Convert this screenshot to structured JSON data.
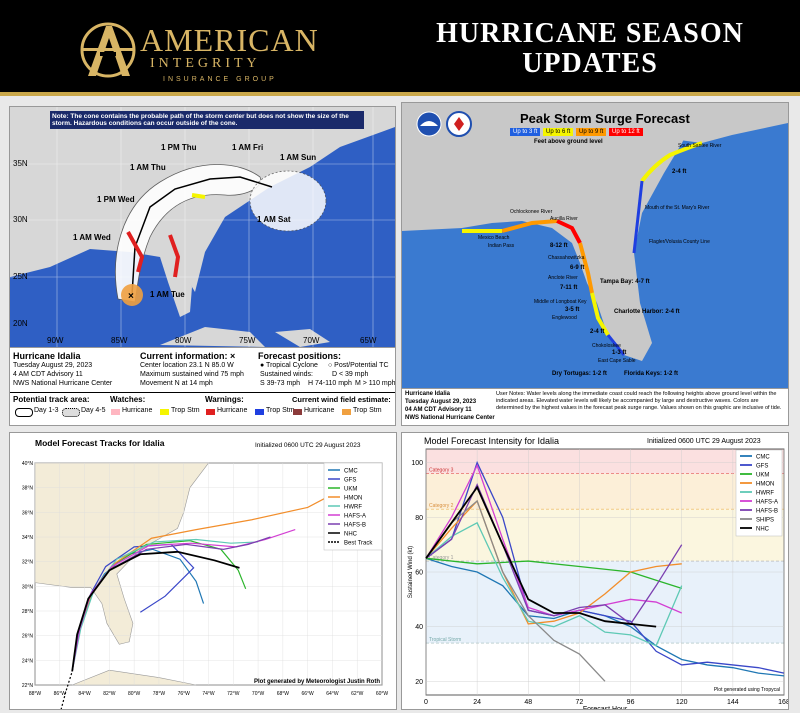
{
  "header": {
    "company_name": "AMERICAN",
    "company_name2": "INTEGRITY",
    "company_sub": "INSURANCE GROUP",
    "title_line1": "HURRICANE SEASON",
    "title_line2": "UPDATES"
  },
  "cone_map": {
    "note": "Note: The cone contains the probable path of the storm center but does not show the size of the storm. Hazardous conditions can occur outside of the cone.",
    "storm_name": "Hurricane Idalia",
    "date": "Tuesday August 29, 2023",
    "advisory": "4 AM CDT Advisory 11",
    "center": "NWS National Hurricane Center",
    "current_info_title": "Current information: ×",
    "center_location": "Center location 23.1 N 85.0 W",
    "max_wind": "Maximum sustained wind 75 mph",
    "movement": "Movement N at 14 mph",
    "forecast_positions_title": "Forecast positions:",
    "fp_tropical": "● Tropical Cyclone",
    "fp_post": "○ Post/Potential TC",
    "sustained_winds": "Sustained winds:",
    "wind_d": "D < 39 mph",
    "wind_s": "S 39-73 mph",
    "wind_h": "H 74-110 mph",
    "wind_m": "M > 110 mph",
    "track_area_label": "Potential track area:",
    "day13": "Day 1-3",
    "day45": "Day 4-5",
    "watches_label": "Watches:",
    "watch_hurricane": "Hurricane",
    "watch_trop": "Trop Stm",
    "warnings_label": "Warnings:",
    "warn_hurricane": "Hurricane",
    "warn_trop": "Trop Stm",
    "wind_field_label": "Current wind field estimate:",
    "wf_hurricane": "Hurricane",
    "wf_trop": "Trop Stm",
    "time_labels": [
      "1 AM Fri",
      "1 PM Thu",
      "1 AM Thu",
      "1 PM Wed",
      "1 AM Wed",
      "1 AM Tue",
      "1 AM Sun",
      "1 AM Sat"
    ],
    "lat_labels": [
      "35N",
      "30N",
      "25N",
      "20N"
    ],
    "lon_labels": [
      "90W",
      "85W",
      "80W",
      "75W",
      "70W",
      "65W"
    ]
  },
  "surge_map": {
    "title": "Peak Storm Surge Forecast",
    "legend": [
      "Up to 3 ft",
      "Up to 6 ft",
      "Up to 9 ft",
      "Up to 12 ft"
    ],
    "legend_colors": [
      "#1f5fe0",
      "#f5f500",
      "#ff9900",
      "#ff0000"
    ],
    "subtitle": "Feet above ground level",
    "storm_name": "Hurricane Idalia",
    "date": "Tuesday August 29, 2023",
    "advisory": "04 AM CDT Advisory 11",
    "center": "NWS National Hurricane Center",
    "user_notes": "User Notes: Water levels along the immediate coast could reach the following heights above ground level within the indicated areas. Elevated water levels will likely be accompanied by large and destructive waves. Colors are determined by the highest values in the forecast peak surge range. Values shown on this graphic are inclusive of tide.",
    "places": [
      "South Santee River",
      "Mouth of the St. Mary's River",
      "Flagler/Volusia County Line",
      "Ochlockonee River",
      "Aucilla River",
      "Indian Pass",
      "Mexico Beach",
      "Chassahowitzka",
      "Anclote River",
      "Tampa Bay: 4-7 ft",
      "Middle of Longboat Key",
      "Englewood",
      "Charlotte Harbor: 2-4 ft",
      "Chokoloskee",
      "East Cape Sable",
      "Dry Tortugas: 1-2 ft",
      "Florida Keys: 1-2 ft"
    ],
    "values": [
      "2-4 ft",
      "8-12 ft",
      "6-9 ft",
      "7-11 ft",
      "4-7 ft",
      "3-5 ft",
      "2-4 ft",
      "1-3 ft",
      "2-4 ft"
    ]
  },
  "track_chart": {
    "title": "Model Forecast Tracks for Idalia",
    "initialized": "Initialized 0600 UTC 29 August 2023",
    "credit": "Plot generated by Meteorologist Justin Roth"
  },
  "intensity_chart": {
    "title": "Model Forecast Intensity for Idalia",
    "initialized": "Initialized 0600 UTC 29 August 2023",
    "credit": "Plot generated using Tropycal",
    "cat3": "Category 3",
    "cat2": "Category 2",
    "cat1": "Category 1",
    "ts": "Tropical Storm"
  },
  "chart_data": [
    {
      "type": "line",
      "title": "Model Forecast Tracks for Idalia",
      "xlabel": "",
      "ylabel": "",
      "xlim": [
        -88,
        -60
      ],
      "ylim": [
        22,
        40
      ],
      "x_ticks": [
        "88°W",
        "86°W",
        "84°W",
        "82°W",
        "80°W",
        "78°W",
        "76°W",
        "74°W",
        "72°W",
        "70°W",
        "68°W",
        "66°W",
        "64°W",
        "62°W",
        "60°W"
      ],
      "y_ticks": [
        "22°N",
        "24°N",
        "26°N",
        "28°N",
        "30°N",
        "32°N",
        "34°N",
        "36°N",
        "38°N",
        "40°N"
      ],
      "legend_position": "top-right",
      "series": [
        {
          "name": "CMC",
          "color": "#1f77b4",
          "lon": [
            -85.0,
            -84.5,
            -83.6,
            -82.4,
            -80.5,
            -78.5,
            -76.3,
            -75.0,
            -74.4
          ],
          "lat": [
            23.1,
            26.2,
            29.0,
            31.0,
            32.6,
            33.0,
            32.2,
            30.4,
            28.6
          ]
        },
        {
          "name": "GFS",
          "color": "#3a47c8",
          "lon": [
            -85.0,
            -84.5,
            -83.5,
            -82.3,
            -80.0,
            -77.0,
            -75.2,
            -77.5,
            -79.5
          ],
          "lat": [
            23.1,
            26.4,
            29.4,
            31.6,
            33.2,
            33.4,
            31.5,
            29.2,
            27.9
          ]
        },
        {
          "name": "UKM",
          "color": "#2bb52b",
          "lon": [
            -85.0,
            -84.4,
            -83.3,
            -81.6,
            -79.0,
            -75.5,
            -73.0,
            -71.6,
            -71.0
          ],
          "lat": [
            23.1,
            26.6,
            29.6,
            31.8,
            33.4,
            33.7,
            33.0,
            31.3,
            29.8
          ]
        },
        {
          "name": "HMON",
          "color": "#f28e2b",
          "lon": [
            -85.0,
            -84.4,
            -83.4,
            -81.5,
            -78.6,
            -75.0,
            -70.5,
            -66.0,
            -64.3
          ],
          "lat": [
            23.1,
            26.6,
            29.5,
            31.9,
            33.9,
            34.6,
            35.4,
            36.4,
            37.3
          ]
        },
        {
          "name": "HWRF",
          "color": "#5ec9b5",
          "lon": [
            -85.0,
            -84.3,
            -83.2,
            -81.4,
            -78.4,
            -75.0,
            -72.2,
            -70.0
          ],
          "lat": [
            23.1,
            26.6,
            29.8,
            32.2,
            33.6,
            33.8,
            33.5,
            33.6
          ]
        },
        {
          "name": "HAFS-A",
          "color": "#d33fd3",
          "lon": [
            -85.0,
            -84.4,
            -83.5,
            -81.8,
            -78.8,
            -75.4,
            -71.8,
            -69.4,
            -67.0
          ],
          "lat": [
            23.1,
            26.5,
            29.4,
            31.6,
            33.3,
            33.5,
            33.2,
            33.8,
            34.6
          ]
        },
        {
          "name": "HAFS-B",
          "color": "#7b3fb0",
          "lon": [
            -85.0,
            -84.5,
            -83.6,
            -81.9,
            -79.0,
            -75.8,
            -72.8,
            -70.8,
            -69.0
          ],
          "lat": [
            23.1,
            26.3,
            29.2,
            31.4,
            33.0,
            33.4,
            33.0,
            33.4,
            34.0
          ]
        },
        {
          "name": "NHC",
          "color": "#000000",
          "lon": [
            -85.0,
            -84.6,
            -83.7,
            -82.0,
            -79.5,
            -76.5,
            -73.5,
            -71.5
          ],
          "lat": [
            23.1,
            26.1,
            29.0,
            31.3,
            32.6,
            32.8,
            32.1,
            31.5
          ]
        },
        {
          "name": "Best Track",
          "color": "#000000",
          "dashed": true,
          "lon": [
            -85.9,
            -85.5,
            -85.0
          ],
          "lat": [
            20.0,
            21.5,
            23.1
          ]
        }
      ]
    },
    {
      "type": "line",
      "title": "Model Forecast Intensity for Idalia",
      "xlabel": "Forecast Hour",
      "ylabel": "Sustained Wind (kt)",
      "xlim": [
        0,
        168
      ],
      "ylim": [
        15,
        105
      ],
      "x_ticks": [
        0,
        24,
        48,
        72,
        96,
        120,
        144,
        168
      ],
      "y_ticks": [
        20,
        40,
        60,
        80,
        100
      ],
      "legend_position": "top-right",
      "series": [
        {
          "name": "CMC",
          "color": "#1f77b4",
          "x": [
            0,
            12,
            24,
            36,
            48,
            60,
            72,
            84,
            96,
            108,
            120,
            132,
            144,
            156,
            168
          ],
          "y": [
            65,
            62,
            60,
            55,
            44,
            43,
            46,
            44,
            40,
            33,
            28,
            26,
            25,
            23,
            22
          ]
        },
        {
          "name": "GFS",
          "color": "#3a47c8",
          "x": [
            0,
            12,
            24,
            36,
            48,
            60,
            72,
            84,
            96,
            108,
            120,
            132,
            144,
            156,
            168
          ],
          "y": [
            65,
            72,
            100,
            80,
            46,
            44,
            46,
            44,
            42,
            31,
            26,
            27,
            26,
            25,
            23
          ]
        },
        {
          "name": "UKM",
          "color": "#2bb52b",
          "x": [
            0,
            24,
            48,
            72,
            96,
            108,
            120
          ],
          "y": [
            65,
            63,
            64,
            62,
            60,
            57,
            54
          ]
        },
        {
          "name": "HMON",
          "color": "#f28e2b",
          "x": [
            0,
            12,
            24,
            36,
            48,
            60,
            72,
            84,
            96,
            108,
            120
          ],
          "y": [
            65,
            76,
            86,
            60,
            41,
            42,
            45,
            52,
            60,
            62,
            63
          ]
        },
        {
          "name": "HWRF",
          "color": "#5ec9b5",
          "x": [
            0,
            12,
            24,
            36,
            48,
            60,
            72,
            84,
            96,
            108,
            120
          ],
          "y": [
            65,
            73,
            78,
            58,
            42,
            40,
            44,
            38,
            37,
            33,
            55
          ]
        },
        {
          "name": "HAFS-A",
          "color": "#d33fd3",
          "x": [
            0,
            12,
            24,
            36,
            48,
            60,
            72,
            84,
            96,
            108,
            120
          ],
          "y": [
            65,
            80,
            99,
            72,
            47,
            44,
            46,
            48,
            50,
            49,
            45
          ]
        },
        {
          "name": "HAFS-B",
          "color": "#7b3fb0",
          "x": [
            0,
            12,
            24,
            36,
            48,
            60,
            72,
            84,
            96,
            108,
            120
          ],
          "y": [
            65,
            72,
            92,
            70,
            46,
            44,
            47,
            48,
            41,
            55,
            70
          ]
        },
        {
          "name": "SHIPS",
          "color": "#8a8a8a",
          "x": [
            0,
            12,
            24,
            36,
            48,
            60,
            72,
            84
          ],
          "y": [
            65,
            78,
            86,
            60,
            44,
            35,
            30,
            20
          ]
        },
        {
          "name": "NHC",
          "color": "#000000",
          "x": [
            0,
            12,
            24,
            36,
            48,
            60,
            72,
            84,
            96,
            108
          ],
          "y": [
            65,
            78,
            91,
            70,
            50,
            45,
            45,
            42,
            41,
            40
          ]
        }
      ]
    }
  ]
}
